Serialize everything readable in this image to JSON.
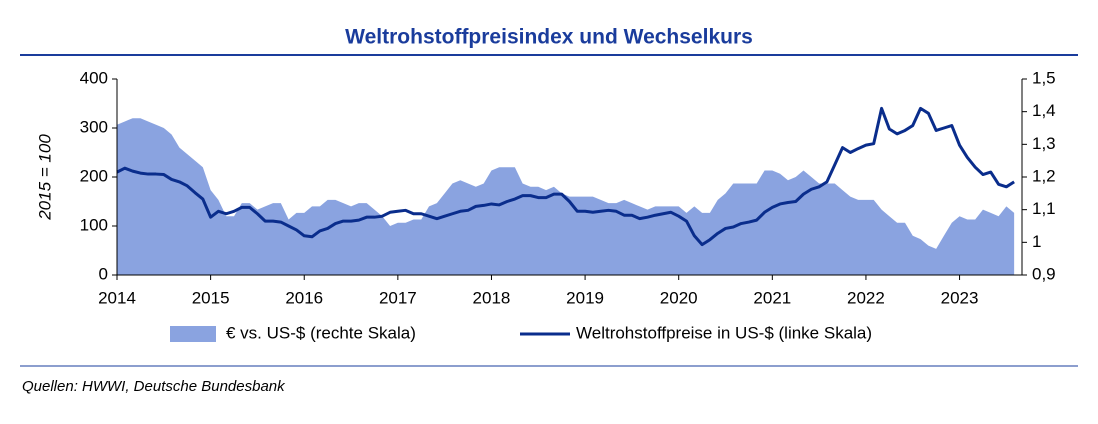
{
  "chart_data": {
    "type": "combo",
    "title": "Weltrohstoffpreisindex und Wechselkurs",
    "y_label": "2015 = 100",
    "source": "Quellen: HWWI, Deutsche Bundesbank",
    "x": [
      2014,
      2014.083,
      2014.167,
      2014.25,
      2014.333,
      2014.417,
      2014.5,
      2014.583,
      2014.667,
      2014.75,
      2014.833,
      2014.917,
      2015,
      2015.083,
      2015.167,
      2015.25,
      2015.333,
      2015.417,
      2015.5,
      2015.583,
      2015.667,
      2015.75,
      2015.833,
      2015.917,
      2016,
      2016.083,
      2016.167,
      2016.25,
      2016.333,
      2016.417,
      2016.5,
      2016.583,
      2016.667,
      2016.75,
      2016.833,
      2016.917,
      2017,
      2017.083,
      2017.167,
      2017.25,
      2017.333,
      2017.417,
      2017.5,
      2017.583,
      2017.667,
      2017.75,
      2017.833,
      2017.917,
      2018,
      2018.083,
      2018.167,
      2018.25,
      2018.333,
      2018.417,
      2018.5,
      2018.583,
      2018.667,
      2018.75,
      2018.833,
      2018.917,
      2019,
      2019.083,
      2019.167,
      2019.25,
      2019.333,
      2019.417,
      2019.5,
      2019.583,
      2019.667,
      2019.75,
      2019.833,
      2019.917,
      2020,
      2020.083,
      2020.167,
      2020.25,
      2020.333,
      2020.417,
      2020.5,
      2020.583,
      2020.667,
      2020.75,
      2020.833,
      2020.917,
      2021,
      2021.083,
      2021.167,
      2021.25,
      2021.333,
      2021.417,
      2021.5,
      2021.583,
      2021.667,
      2021.75,
      2021.833,
      2021.917,
      2022,
      2022.083,
      2022.167,
      2022.25,
      2022.333,
      2022.417,
      2022.5,
      2022.583,
      2022.667,
      2022.75,
      2022.833,
      2022.917,
      2023,
      2023.083,
      2023.167,
      2023.25,
      2023.333,
      2023.417,
      2023.5,
      2023.583
    ],
    "series": [
      {
        "name": "€ vs. US-$ (rechte Skala)",
        "type": "area",
        "axis": "y2",
        "color": "#8aa3e0",
        "values": [
          1.36,
          1.37,
          1.38,
          1.38,
          1.37,
          1.36,
          1.35,
          1.33,
          1.29,
          1.27,
          1.25,
          1.23,
          1.16,
          1.13,
          1.08,
          1.08,
          1.12,
          1.12,
          1.1,
          1.11,
          1.12,
          1.12,
          1.07,
          1.09,
          1.09,
          1.11,
          1.11,
          1.13,
          1.13,
          1.12,
          1.11,
          1.12,
          1.12,
          1.1,
          1.08,
          1.05,
          1.06,
          1.06,
          1.07,
          1.07,
          1.11,
          1.12,
          1.15,
          1.18,
          1.19,
          1.18,
          1.17,
          1.18,
          1.22,
          1.23,
          1.23,
          1.23,
          1.18,
          1.17,
          1.17,
          1.16,
          1.17,
          1.15,
          1.14,
          1.14,
          1.14,
          1.14,
          1.13,
          1.12,
          1.12,
          1.13,
          1.12,
          1.11,
          1.1,
          1.11,
          1.11,
          1.11,
          1.11,
          1.09,
          1.11,
          1.09,
          1.09,
          1.13,
          1.15,
          1.18,
          1.18,
          1.18,
          1.18,
          1.22,
          1.22,
          1.21,
          1.19,
          1.2,
          1.22,
          1.2,
          1.18,
          1.18,
          1.18,
          1.16,
          1.14,
          1.13,
          1.13,
          1.13,
          1.1,
          1.08,
          1.06,
          1.06,
          1.02,
          1.01,
          0.99,
          0.98,
          1.02,
          1.06,
          1.08,
          1.07,
          1.07,
          1.1,
          1.09,
          1.08,
          1.11,
          1.09
        ]
      },
      {
        "name": "Weltrohstoffpreise in US-$ (linke Skala)",
        "type": "line",
        "color": "#0a2d8c",
        "values": [
          210,
          218,
          212,
          208,
          206,
          206,
          205,
          195,
          190,
          182,
          168,
          155,
          118,
          130,
          125,
          130,
          138,
          138,
          125,
          110,
          110,
          108,
          100,
          92,
          80,
          78,
          90,
          95,
          105,
          110,
          110,
          112,
          118,
          118,
          120,
          128,
          130,
          132,
          125,
          125,
          120,
          115,
          120,
          125,
          130,
          132,
          140,
          142,
          145,
          143,
          150,
          155,
          162,
          162,
          158,
          158,
          165,
          165,
          150,
          130,
          130,
          128,
          130,
          132,
          130,
          122,
          122,
          115,
          118,
          122,
          125,
          128,
          120,
          110,
          80,
          62,
          72,
          85,
          95,
          98,
          105,
          108,
          112,
          128,
          138,
          145,
          148,
          150,
          165,
          175,
          180,
          190,
          225,
          260,
          250,
          258,
          265,
          268,
          340,
          298,
          288,
          295,
          305,
          340,
          330,
          295,
          300,
          305,
          265,
          240,
          220,
          205,
          210,
          185,
          180,
          190
        ]
      }
    ],
    "xlim": [
      2014,
      2023.667
    ],
    "xticks": [
      2014,
      2015,
      2016,
      2017,
      2018,
      2019,
      2020,
      2021,
      2022,
      2023
    ],
    "ylim": [
      0,
      400
    ],
    "yticks": [
      0,
      100,
      200,
      300,
      400
    ],
    "y2lim": [
      0.9,
      1.5
    ],
    "y2ticks": [
      {
        "value": 0.9,
        "label": "0,9"
      },
      1,
      {
        "value": 1.1,
        "label": "1,1"
      },
      {
        "value": 1.2,
        "label": "1,2"
      },
      {
        "value": 1.3,
        "label": "1,3"
      },
      {
        "value": 1.4,
        "label": "1,4"
      },
      {
        "value": 1.5,
        "label": "1,5"
      }
    ]
  }
}
